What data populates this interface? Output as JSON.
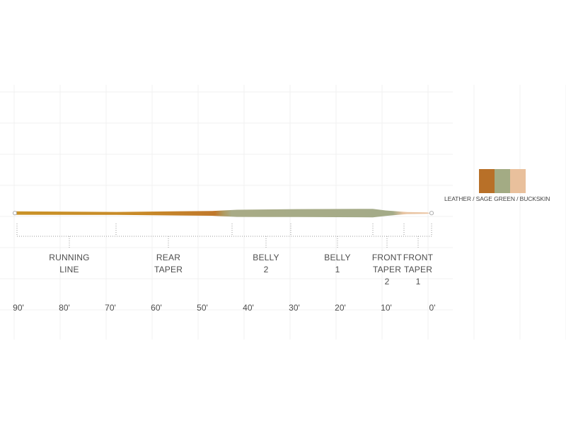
{
  "diagram": {
    "segments": [
      {
        "lines": [
          "RUNNING",
          "LINE"
        ]
      },
      {
        "lines": [
          "REAR",
          "TAPER"
        ]
      },
      {
        "lines": [
          "BELLY",
          "2"
        ]
      },
      {
        "lines": [
          "BELLY",
          "1"
        ]
      },
      {
        "lines": [
          "FRONT",
          "TAPER",
          "2"
        ]
      },
      {
        "lines": [
          "FRONT",
          "TAPER",
          "1"
        ]
      }
    ],
    "axis_labels": [
      "90'",
      "80'",
      "70'",
      "60'",
      "50'",
      "40'",
      "30'",
      "20'",
      "10'",
      "0'"
    ],
    "colors": {
      "leather": "#b87028",
      "sage_green": "#a3ab84",
      "buckskin": "#e9c09c"
    },
    "color_caption": "LEATHER / SAGE GREEN / BUCKSKIN"
  }
}
